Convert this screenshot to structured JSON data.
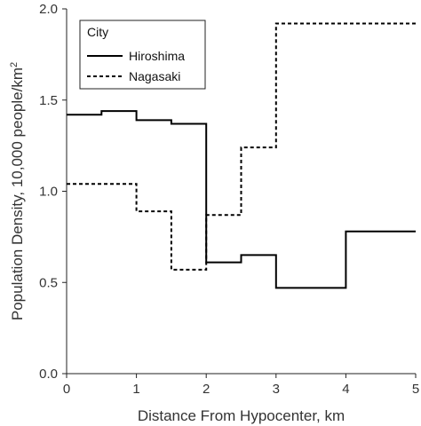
{
  "chart_data": {
    "type": "line",
    "step": true,
    "xlabel": "Distance From Hypocenter, km",
    "ylabel_main": "Population Density, 10,000 people/km",
    "ylabel_sup": "2",
    "xlim": [
      0,
      5
    ],
    "ylim": [
      0,
      2
    ],
    "x_ticks": [
      "0",
      "1",
      "2",
      "3",
      "4",
      "5"
    ],
    "y_ticks": [
      "0.0",
      "0.5",
      "1.0",
      "1.5",
      "2.0"
    ],
    "grid": false,
    "legend": {
      "title": "City",
      "position": "top-left"
    },
    "series": [
      {
        "name": "Hiroshima",
        "style": "solid",
        "color": "#000000",
        "bins": [
          0,
          0.5,
          1,
          1.5,
          2,
          2.5,
          3,
          4,
          5
        ],
        "values": [
          1.42,
          1.44,
          1.39,
          1.37,
          0.61,
          0.65,
          0.47,
          0.78
        ]
      },
      {
        "name": "Nagasaki",
        "style": "dashed",
        "color": "#000000",
        "bins": [
          0,
          1,
          1.5,
          2,
          2.5,
          3,
          5
        ],
        "values": [
          1.04,
          0.89,
          0.57,
          0.87,
          1.24,
          1.92
        ]
      }
    ]
  }
}
